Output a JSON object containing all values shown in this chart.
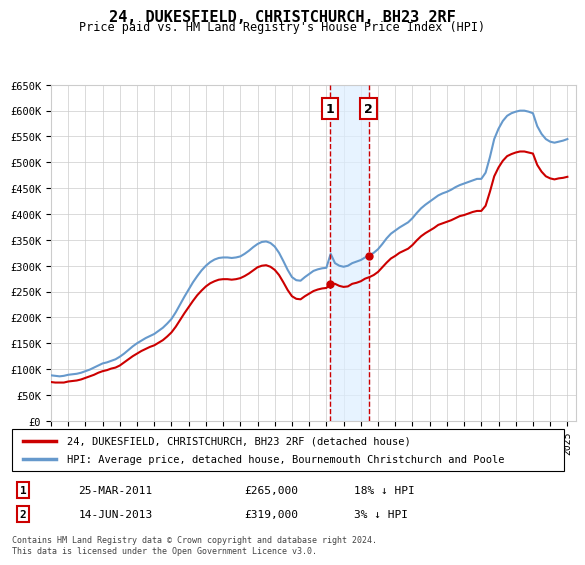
{
  "title": "24, DUKESFIELD, CHRISTCHURCH, BH23 2RF",
  "subtitle": "Price paid vs. HM Land Registry's House Price Index (HPI)",
  "ylabel": "",
  "xlabel": "",
  "ylim": [
    0,
    650000
  ],
  "yticks": [
    0,
    50000,
    100000,
    150000,
    200000,
    250000,
    300000,
    350000,
    400000,
    450000,
    500000,
    550000,
    600000,
    650000
  ],
  "ytick_labels": [
    "£0",
    "£50K",
    "£100K",
    "£150K",
    "£200K",
    "£250K",
    "£300K",
    "£350K",
    "£400K",
    "£450K",
    "£500K",
    "£550K",
    "£600K",
    "£650K"
  ],
  "xlim_start": 1995.0,
  "xlim_end": 2025.5,
  "xtick_years": [
    1995,
    1996,
    1997,
    1998,
    1999,
    2000,
    2001,
    2002,
    2003,
    2004,
    2005,
    2006,
    2007,
    2008,
    2009,
    2010,
    2011,
    2012,
    2013,
    2014,
    2015,
    2016,
    2017,
    2018,
    2019,
    2020,
    2021,
    2022,
    2023,
    2024,
    2025
  ],
  "transaction1_x": 2011.23,
  "transaction1_y": 265000,
  "transaction1_label": "1",
  "transaction1_date": "25-MAR-2011",
  "transaction1_price": "£265,000",
  "transaction1_note": "18% ↓ HPI",
  "transaction2_x": 2013.45,
  "transaction2_y": 319000,
  "transaction2_label": "2",
  "transaction2_date": "14-JUN-2013",
  "transaction2_price": "£319,000",
  "transaction2_note": "3% ↓ HPI",
  "red_line_color": "#cc0000",
  "blue_line_color": "#6699cc",
  "grid_color": "#cccccc",
  "bg_color": "#ffffff",
  "plot_bg_color": "#ffffff",
  "shaded_region_color": "#ddeeff",
  "legend_label_red": "24, DUKESFIELD, CHRISTCHURCH, BH23 2RF (detached house)",
  "legend_label_blue": "HPI: Average price, detached house, Bournemouth Christchurch and Poole",
  "footer_text": "Contains HM Land Registry data © Crown copyright and database right 2024.\nThis data is licensed under the Open Government Licence v3.0.",
  "hpi_data_x": [
    1995.0,
    1995.25,
    1995.5,
    1995.75,
    1996.0,
    1996.25,
    1996.5,
    1996.75,
    1997.0,
    1997.25,
    1997.5,
    1997.75,
    1998.0,
    1998.25,
    1998.5,
    1998.75,
    1999.0,
    1999.25,
    1999.5,
    1999.75,
    2000.0,
    2000.25,
    2000.5,
    2000.75,
    2001.0,
    2001.25,
    2001.5,
    2001.75,
    2002.0,
    2002.25,
    2002.5,
    2002.75,
    2003.0,
    2003.25,
    2003.5,
    2003.75,
    2004.0,
    2004.25,
    2004.5,
    2004.75,
    2005.0,
    2005.25,
    2005.5,
    2005.75,
    2006.0,
    2006.25,
    2006.5,
    2006.75,
    2007.0,
    2007.25,
    2007.5,
    2007.75,
    2008.0,
    2008.25,
    2008.5,
    2008.75,
    2009.0,
    2009.25,
    2009.5,
    2009.75,
    2010.0,
    2010.25,
    2010.5,
    2010.75,
    2011.0,
    2011.25,
    2011.5,
    2011.75,
    2012.0,
    2012.25,
    2012.5,
    2012.75,
    2013.0,
    2013.25,
    2013.5,
    2013.75,
    2014.0,
    2014.25,
    2014.5,
    2014.75,
    2015.0,
    2015.25,
    2015.5,
    2015.75,
    2016.0,
    2016.25,
    2016.5,
    2016.75,
    2017.0,
    2017.25,
    2017.5,
    2017.75,
    2018.0,
    2018.25,
    2018.5,
    2018.75,
    2019.0,
    2019.25,
    2019.5,
    2019.75,
    2020.0,
    2020.25,
    2020.5,
    2020.75,
    2021.0,
    2021.25,
    2021.5,
    2021.75,
    2022.0,
    2022.25,
    2022.5,
    2022.75,
    2023.0,
    2023.25,
    2023.5,
    2023.75,
    2024.0,
    2024.25,
    2024.5,
    2024.75,
    2025.0
  ],
  "hpi_data_y": [
    88000,
    87000,
    86000,
    87000,
    89000,
    90000,
    91000,
    93000,
    96000,
    99000,
    103000,
    107000,
    111000,
    113000,
    116000,
    119000,
    124000,
    130000,
    137000,
    144000,
    150000,
    155000,
    160000,
    164000,
    168000,
    174000,
    180000,
    188000,
    197000,
    210000,
    225000,
    240000,
    254000,
    268000,
    280000,
    291000,
    300000,
    307000,
    312000,
    315000,
    316000,
    316000,
    315000,
    316000,
    318000,
    323000,
    329000,
    336000,
    342000,
    346000,
    347000,
    344000,
    337000,
    325000,
    309000,
    292000,
    278000,
    272000,
    271000,
    278000,
    284000,
    290000,
    293000,
    295000,
    296000,
    323000,
    305000,
    300000,
    298000,
    300000,
    305000,
    308000,
    311000,
    316000,
    320000,
    325000,
    332000,
    342000,
    353000,
    362000,
    368000,
    374000,
    379000,
    384000,
    392000,
    402000,
    411000,
    418000,
    424000,
    430000,
    436000,
    440000,
    443000,
    447000,
    452000,
    456000,
    459000,
    462000,
    465000,
    468000,
    468000,
    480000,
    510000,
    545000,
    565000,
    580000,
    590000,
    595000,
    598000,
    600000,
    600000,
    598000,
    595000,
    570000,
    555000,
    545000,
    540000,
    538000,
    540000,
    542000,
    545000
  ],
  "red_data_x": [
    1995.0,
    1995.25,
    1995.5,
    1995.75,
    1996.0,
    1996.25,
    1996.5,
    1996.75,
    1997.0,
    1997.25,
    1997.5,
    1997.75,
    1998.0,
    1998.25,
    1998.5,
    1998.75,
    1999.0,
    1999.25,
    1999.5,
    1999.75,
    2000.0,
    2000.25,
    2000.5,
    2000.75,
    2001.0,
    2001.25,
    2001.5,
    2001.75,
    2002.0,
    2002.25,
    2002.5,
    2002.75,
    2003.0,
    2003.25,
    2003.5,
    2003.75,
    2004.0,
    2004.25,
    2004.5,
    2004.75,
    2005.0,
    2005.25,
    2005.5,
    2005.75,
    2006.0,
    2006.25,
    2006.5,
    2006.75,
    2007.0,
    2007.25,
    2007.5,
    2007.75,
    2008.0,
    2008.25,
    2008.5,
    2008.75,
    2009.0,
    2009.25,
    2009.5,
    2009.75,
    2010.0,
    2010.25,
    2010.5,
    2010.75,
    2011.0,
    2011.25,
    2011.5,
    2011.75,
    2012.0,
    2012.25,
    2012.5,
    2012.75,
    2013.0,
    2013.25,
    2013.5,
    2013.75,
    2014.0,
    2014.25,
    2014.5,
    2014.75,
    2015.0,
    2015.25,
    2015.5,
    2015.75,
    2016.0,
    2016.25,
    2016.5,
    2016.75,
    2017.0,
    2017.25,
    2017.5,
    2017.75,
    2018.0,
    2018.25,
    2018.5,
    2018.75,
    2019.0,
    2019.25,
    2019.5,
    2019.75,
    2020.0,
    2020.25,
    2020.5,
    2020.75,
    2021.0,
    2021.25,
    2021.5,
    2021.75,
    2022.0,
    2022.25,
    2022.5,
    2022.75,
    2023.0,
    2023.25,
    2023.5,
    2023.75,
    2024.0,
    2024.25,
    2024.5,
    2024.75,
    2025.0
  ],
  "red_data_y": [
    75000,
    74000,
    74000,
    74000,
    76000,
    77000,
    78000,
    80000,
    83000,
    86000,
    89000,
    93000,
    96000,
    98000,
    101000,
    103000,
    107000,
    113000,
    119000,
    125000,
    130000,
    135000,
    139000,
    143000,
    146000,
    151000,
    156000,
    163000,
    171000,
    182000,
    195000,
    208000,
    220000,
    232000,
    243000,
    252000,
    260000,
    266000,
    270000,
    273000,
    274000,
    274000,
    273000,
    274000,
    276000,
    280000,
    285000,
    291000,
    297000,
    300000,
    301000,
    298000,
    292000,
    282000,
    268000,
    253000,
    241000,
    236000,
    235000,
    241000,
    246000,
    251000,
    254000,
    256000,
    257000,
    265000,
    265000,
    261000,
    259000,
    260000,
    265000,
    267000,
    270000,
    275000,
    278000,
    282000,
    288000,
    297000,
    306000,
    314000,
    319000,
    325000,
    329000,
    333000,
    340000,
    349000,
    357000,
    363000,
    368000,
    373000,
    379000,
    382000,
    385000,
    388000,
    392000,
    396000,
    398000,
    401000,
    404000,
    406000,
    406000,
    416000,
    443000,
    473000,
    490000,
    503000,
    512000,
    516000,
    519000,
    521000,
    521000,
    519000,
    517000,
    495000,
    482000,
    473000,
    469000,
    467000,
    469000,
    470000,
    472000
  ]
}
